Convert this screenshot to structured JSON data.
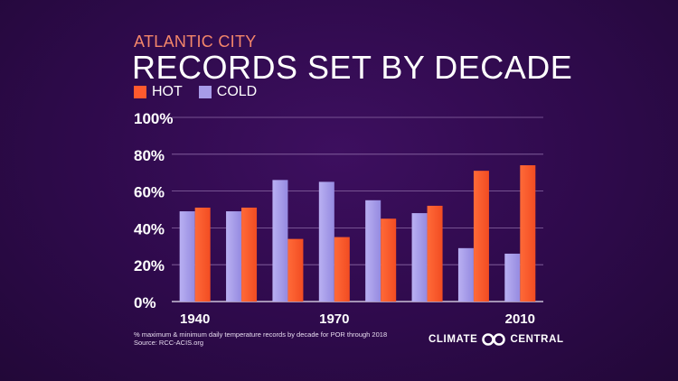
{
  "header": {
    "subtitle": "ATLANTIC CITY",
    "title": "RECORDS SET BY DECADE"
  },
  "colors": {
    "hot": "#ff5a2e",
    "cold": "#a79be8"
  },
  "footnote": {
    "line1": "% maximum & minimum daily temperature records by decade for POR through 2018",
    "line2": "Source: RCC-ACIS.org"
  },
  "logo": {
    "left_text": "CLIMATE",
    "right_text": "CENTRAL",
    "mark_icon": "climate-central-logo-icon"
  },
  "chart_data": {
    "type": "bar",
    "title": "RECORDS SET BY DECADE",
    "categories": [
      "1940",
      "1950",
      "1960",
      "1970",
      "1980",
      "1990",
      "2000",
      "2010"
    ],
    "x_tick_labels": [
      "1940",
      "",
      "",
      "1970",
      "",
      "",
      "",
      "2010"
    ],
    "series": [
      {
        "name": "HOT",
        "values": [
          51,
          51,
          34,
          35,
          45,
          52,
          71,
          74
        ]
      },
      {
        "name": "COLD",
        "values": [
          49,
          49,
          66,
          65,
          55,
          48,
          29,
          26
        ]
      }
    ],
    "series_order_per_group": [
      "COLD",
      "HOT"
    ],
    "yticks": [
      "0%",
      "20%",
      "40%",
      "60%",
      "80%",
      "100%"
    ],
    "ylim": [
      0,
      100
    ],
    "xlabel": "",
    "ylabel": "",
    "grid": true,
    "legend_position": "top-left"
  }
}
